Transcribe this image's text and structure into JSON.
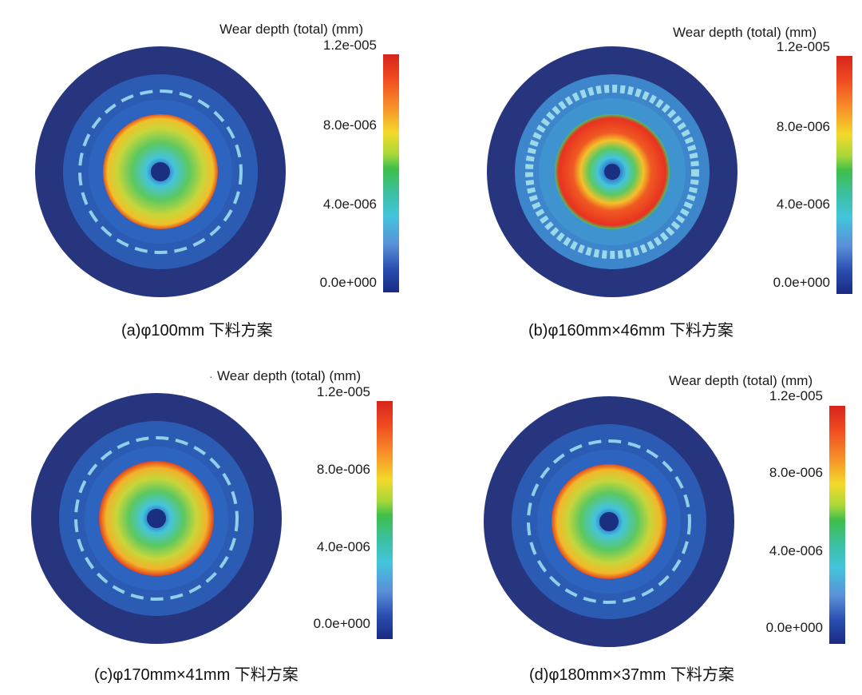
{
  "colorbar": {
    "title": "Wear depth (total) (mm)",
    "ticks": [
      "1.2e-005",
      "8.0e-006",
      "4.0e-006",
      "0.0e+000"
    ],
    "colors": [
      "#d7241c",
      "#f7902a",
      "#f4d92a",
      "#3fbf4a",
      "#44c4dc",
      "#2a4fb0",
      "#1a2a82"
    ]
  },
  "panels": [
    {
      "id": "a",
      "caption": "(a)φ100mm 下料方案",
      "inner_color": "#f0c02a",
      "inner_edge": "#e3541f"
    },
    {
      "id": "b",
      "caption": "(b)φ160mm×46mm 下料方案",
      "inner_color": "#e83220",
      "inner_edge": "#4fc25a"
    },
    {
      "id": "c",
      "caption": "(c)φ170mm×41mm 下料方案",
      "inner_color": "#f2b22a",
      "inner_edge": "#e3411d"
    },
    {
      "id": "d",
      "caption": "(d)φ180mm×37mm 下料方案",
      "inner_color": "#f2b82a",
      "inner_edge": "#e3491f"
    }
  ],
  "stray_mark": "·"
}
